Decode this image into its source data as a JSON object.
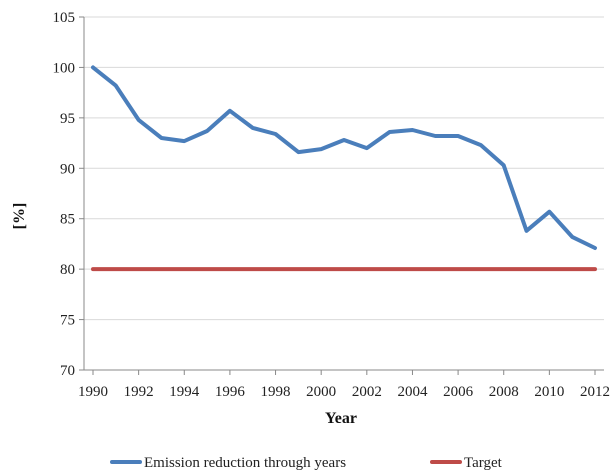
{
  "chart_data": {
    "type": "line",
    "title": "",
    "xlabel": "Year",
    "ylabel": "[%]",
    "x": [
      1990,
      1991,
      1992,
      1993,
      1994,
      1995,
      1996,
      1997,
      1998,
      1999,
      2000,
      2001,
      2002,
      2003,
      2004,
      2005,
      2006,
      2007,
      2008,
      2009,
      2010,
      2011,
      2012
    ],
    "x_ticks": [
      "1990",
      "1992",
      "1994",
      "1996",
      "1998",
      "2000",
      "2002",
      "2004",
      "2006",
      "2008",
      "2010",
      "2012"
    ],
    "y_ticks": [
      "70",
      "75",
      "80",
      "85",
      "90",
      "95",
      "100",
      "105"
    ],
    "xlim": [
      1990,
      2012
    ],
    "ylim": [
      70,
      105
    ],
    "grid": "horizontal",
    "legend_position": "bottom",
    "series": [
      {
        "name": "Emission reduction through years",
        "color": "#4a7ebb",
        "values": [
          100,
          98.2,
          94.8,
          93.0,
          92.7,
          93.7,
          95.7,
          94.0,
          93.4,
          91.6,
          91.9,
          92.8,
          92.0,
          93.6,
          93.8,
          93.2,
          93.2,
          92.3,
          90.3,
          83.8,
          85.7,
          83.2,
          82.1
        ]
      },
      {
        "name": "Target",
        "color": "#be4b48",
        "values": [
          80,
          80,
          80,
          80,
          80,
          80,
          80,
          80,
          80,
          80,
          80,
          80,
          80,
          80,
          80,
          80,
          80,
          80,
          80,
          80,
          80,
          80,
          80
        ]
      }
    ]
  }
}
